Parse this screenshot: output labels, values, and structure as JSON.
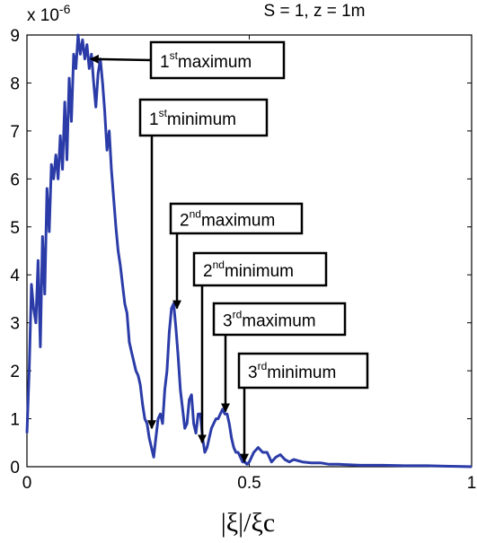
{
  "chart_data": {
    "type": "line",
    "title": "S = 1, z = 1m",
    "xlabel": "|ξ|/ξc",
    "ylabel": "",
    "y_exponent_label": "x 10",
    "y_exponent_power": "-6",
    "xlim": [
      0,
      1
    ],
    "ylim": [
      0,
      9
    ],
    "xticks": [
      0,
      0.5,
      1
    ],
    "xtick_labels": [
      "0",
      "0.5",
      "1"
    ],
    "yticks": [
      0,
      1,
      2,
      3,
      4,
      5,
      6,
      7,
      8,
      9
    ],
    "ytick_labels": [
      "0",
      "1",
      "2",
      "3",
      "4",
      "5",
      "6",
      "7",
      "8",
      "9"
    ],
    "grid": false,
    "series": [
      {
        "color": "#2b3ca8",
        "x": [
          0.0,
          0.005,
          0.01,
          0.015,
          0.02,
          0.025,
          0.03,
          0.035,
          0.04,
          0.045,
          0.05,
          0.055,
          0.06,
          0.065,
          0.07,
          0.075,
          0.08,
          0.085,
          0.09,
          0.095,
          0.1,
          0.105,
          0.11,
          0.115,
          0.12,
          0.125,
          0.13,
          0.135,
          0.14,
          0.145,
          0.15,
          0.155,
          0.16,
          0.165,
          0.17,
          0.175,
          0.18,
          0.185,
          0.19,
          0.195,
          0.2,
          0.205,
          0.21,
          0.215,
          0.22,
          0.225,
          0.23,
          0.235,
          0.24,
          0.245,
          0.25,
          0.255,
          0.26,
          0.265,
          0.27,
          0.275,
          0.28,
          0.285,
          0.29,
          0.295,
          0.3,
          0.305,
          0.31,
          0.315,
          0.32,
          0.325,
          0.33,
          0.335,
          0.34,
          0.345,
          0.35,
          0.355,
          0.36,
          0.365,
          0.37,
          0.375,
          0.38,
          0.385,
          0.39,
          0.395,
          0.4,
          0.405,
          0.41,
          0.415,
          0.42,
          0.425,
          0.43,
          0.435,
          0.44,
          0.445,
          0.45,
          0.455,
          0.46,
          0.465,
          0.47,
          0.475,
          0.48,
          0.485,
          0.49,
          0.495,
          0.5,
          0.51,
          0.52,
          0.53,
          0.54,
          0.55,
          0.56,
          0.57,
          0.58,
          0.59,
          0.6,
          0.62,
          0.64,
          0.66,
          0.68,
          0.7,
          0.75,
          0.8,
          0.85,
          0.9,
          0.95,
          1.0
        ],
        "y": [
          0.7,
          2.0,
          3.8,
          3.3,
          3.0,
          4.3,
          2.5,
          4.8,
          3.6,
          5.8,
          4.9,
          6.3,
          6.0,
          6.5,
          6.0,
          6.9,
          6.2,
          7.6,
          6.4,
          8.1,
          7.2,
          8.6,
          8.3,
          9.0,
          8.6,
          8.9,
          8.5,
          8.8,
          8.3,
          8.6,
          8.0,
          7.5,
          8.2,
          8.5,
          8.0,
          7.4,
          6.6,
          7.0,
          6.2,
          5.6,
          5.0,
          4.5,
          4.2,
          3.8,
          3.4,
          3.2,
          2.6,
          2.4,
          2.2,
          2.0,
          1.9,
          1.7,
          1.3,
          1.0,
          0.9,
          0.6,
          0.4,
          0.2,
          0.6,
          1.0,
          1.1,
          0.9,
          1.6,
          2.0,
          2.8,
          3.3,
          3.4,
          2.9,
          2.3,
          1.6,
          1.2,
          0.8,
          0.9,
          1.4,
          1.5,
          0.9,
          0.7,
          1.1,
          1.1,
          0.6,
          0.3,
          0.4,
          0.6,
          0.8,
          0.9,
          1.0,
          1.0,
          1.1,
          1.2,
          1.1,
          1.1,
          0.9,
          0.6,
          0.4,
          0.3,
          0.3,
          0.2,
          0.1,
          0.1,
          0.05,
          0.1,
          0.3,
          0.4,
          0.3,
          0.3,
          0.1,
          0.2,
          0.25,
          0.15,
          0.1,
          0.15,
          0.1,
          0.08,
          0.08,
          0.05,
          0.05,
          0.03,
          0.03,
          0.02,
          0.02,
          0.01,
          0.0
        ]
      }
    ],
    "annotations": [
      {
        "base": "1",
        "sup": "st",
        "text": "maximum",
        "point": [
          0.135,
          8.5
        ]
      },
      {
        "base": "1",
        "sup": "st",
        "text": "minimum",
        "point": [
          0.285,
          0.8
        ]
      },
      {
        "base": "2",
        "sup": "nd",
        "text": "maximum",
        "point": [
          0.335,
          3.3
        ]
      },
      {
        "base": "2",
        "sup": "nd",
        "text": "minimum",
        "point": [
          0.395,
          0.5
        ]
      },
      {
        "base": "3",
        "sup": "rd",
        "text": "maximum",
        "point": [
          0.445,
          1.15
        ]
      },
      {
        "base": "3",
        "sup": "rd",
        "text": "minimum",
        "point": [
          0.485,
          0.1
        ]
      }
    ]
  }
}
